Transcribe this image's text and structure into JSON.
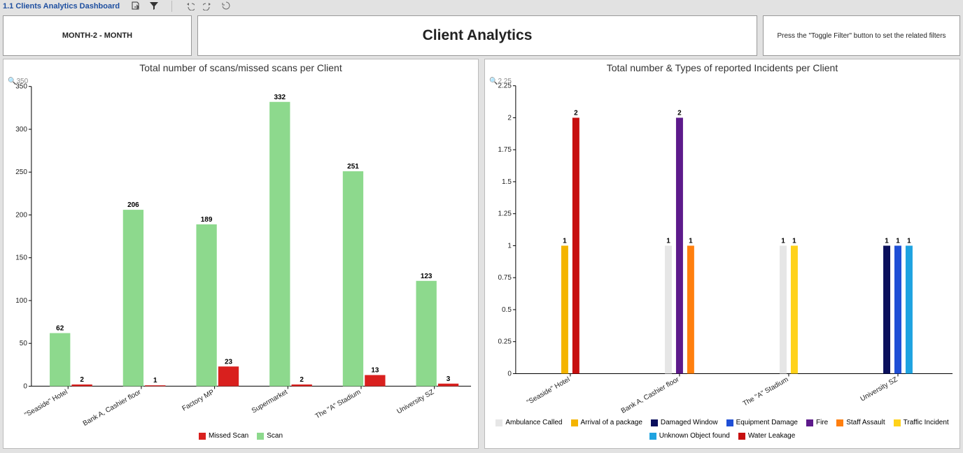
{
  "toolbar": {
    "title": "1.1 Clients Analytics Dashboard"
  },
  "header": {
    "date_range": "MONTH-2 - MONTH",
    "title": "Client Analytics",
    "hint": "Press the \"Toggle Filter\" button to set the related filters"
  },
  "chart_left": {
    "title": "Total number of scans/missed scans per Client",
    "ymax": 350,
    "ytick_step": 50,
    "bar_group_gap": 0.2,
    "background": "#ffffff",
    "axis_color": "#000000",
    "magnify_label": "350",
    "categories": [
      "\"Seaside\" Hotel",
      "Bank A, Cashier floor",
      "Factory MP",
      "Supermarket",
      "The \"A\" Stadium",
      "University SZ"
    ],
    "series": [
      {
        "name": "Scan",
        "color": "#8dd98d",
        "values": [
          62,
          206,
          189,
          332,
          251,
          123
        ]
      },
      {
        "name": "Missed Scan",
        "color": "#d9201e",
        "values": [
          2,
          1,
          23,
          2,
          13,
          3
        ]
      }
    ],
    "legend_order": [
      "Missed Scan",
      "Scan"
    ]
  },
  "chart_right": {
    "title": "Total number & Types of reported Incidents per Client",
    "ymax": 2.25,
    "ytick_step": 0.25,
    "background": "#ffffff",
    "axis_color": "#000000",
    "magnify_label": "2.25",
    "categories": [
      "\"Seaside\" Hotel",
      "Bank A, Cashier floor",
      "The \"A\" Stadium",
      "University SZ"
    ],
    "series_meta": [
      {
        "name": "Ambulance Called",
        "color": "#e6e6e6"
      },
      {
        "name": "Arrival of a package",
        "color": "#f4b400"
      },
      {
        "name": "Damaged Window",
        "color": "#0a0f5c"
      },
      {
        "name": "Equipment Damage",
        "color": "#1f4fd6"
      },
      {
        "name": "Fire",
        "color": "#5d1a8b"
      },
      {
        "name": "Staff Assault",
        "color": "#ff7f0e"
      },
      {
        "name": "Traffic Incident",
        "color": "#ffd21a"
      },
      {
        "name": "Unknown Object found",
        "color": "#1fa3e0"
      },
      {
        "name": "Water Leakage",
        "color": "#c70f0f"
      }
    ],
    "data": {
      "\"Seaside\" Hotel": [
        {
          "series": "Arrival of a package",
          "value": 1
        },
        {
          "series": "Water Leakage",
          "value": 2
        }
      ],
      "Bank A, Cashier floor": [
        {
          "series": "Ambulance Called",
          "value": 1
        },
        {
          "series": "Fire",
          "value": 2
        },
        {
          "series": "Staff Assault",
          "value": 1
        }
      ],
      "The \"A\" Stadium": [
        {
          "series": "Ambulance Called",
          "value": 1
        },
        {
          "series": "Traffic Incident",
          "value": 1
        }
      ],
      "University SZ": [
        {
          "series": "Damaged Window",
          "value": 1
        },
        {
          "series": "Equipment Damage",
          "value": 1
        },
        {
          "series": "Unknown Object found",
          "value": 1
        }
      ]
    }
  }
}
